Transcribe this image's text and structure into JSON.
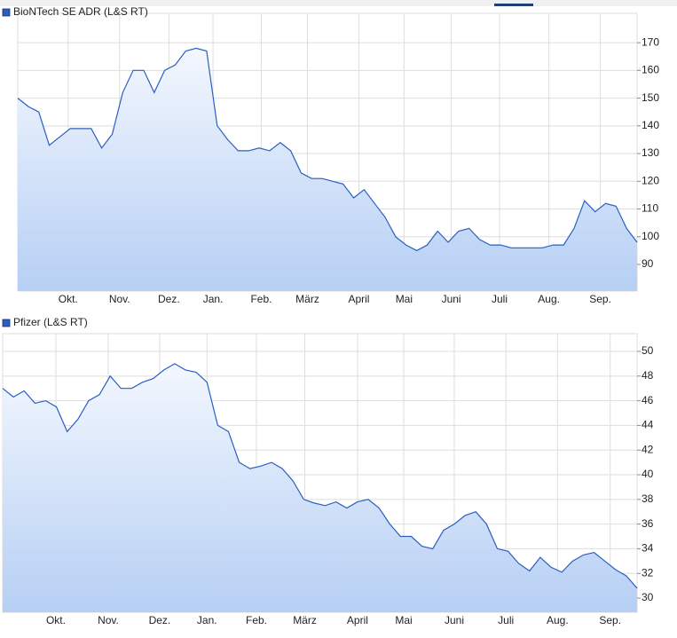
{
  "chart_data": [
    {
      "type": "line",
      "series": [
        {
          "name": "BioNTech SE ADR (L&S RT)",
          "color": "#2a5fbf",
          "values": [
            150,
            147,
            145,
            133,
            136,
            139,
            139,
            139,
            132,
            137,
            152,
            160,
            160,
            152,
            160,
            162,
            167,
            168,
            167,
            140,
            135,
            131,
            131,
            132,
            131,
            134,
            131,
            123,
            121,
            121,
            120,
            119,
            114,
            117,
            112,
            107,
            100,
            97,
            95,
            97,
            102,
            98,
            102,
            103,
            99,
            97,
            97,
            96,
            96,
            96,
            96,
            97,
            97,
            103,
            113,
            109,
            112,
            111,
            103,
            98
          ]
        }
      ],
      "xlim": [
        0,
        59
      ],
      "xticks": [
        {
          "value": 4.8,
          "label": "Okt."
        },
        {
          "value": 9.7,
          "label": "Nov."
        },
        {
          "value": 14.4,
          "label": "Dez."
        },
        {
          "value": 18.6,
          "label": "Jan."
        },
        {
          "value": 23.2,
          "label": "Feb."
        },
        {
          "value": 27.6,
          "label": "März"
        },
        {
          "value": 32.5,
          "label": "April"
        },
        {
          "value": 36.8,
          "label": "Mai"
        },
        {
          "value": 41.3,
          "label": "Juni"
        },
        {
          "value": 45.9,
          "label": "Juli"
        },
        {
          "value": 50.6,
          "label": "Aug."
        },
        {
          "value": 55.5,
          "label": "Sep."
        }
      ],
      "ylim": [
        80.4,
        180.6
      ],
      "yticks": [
        90,
        100,
        110,
        120,
        130,
        140,
        150,
        160,
        170
      ],
      "grid": true
    },
    {
      "type": "line",
      "series": [
        {
          "name": "Pfizer (L&S RT)",
          "color": "#2a5fbf",
          "values": [
            47,
            46.3,
            46.8,
            45.8,
            46,
            45.5,
            43.5,
            44.5,
            46,
            46.5,
            48,
            47,
            47,
            47.5,
            47.8,
            48.5,
            49,
            48.5,
            48.3,
            47.5,
            44,
            43.5,
            41,
            40.5,
            40.7,
            41,
            40.5,
            39.5,
            38,
            37.7,
            37.5,
            37.8,
            37.3,
            37.8,
            38,
            37.3,
            36,
            35,
            35,
            34.2,
            34,
            35.5,
            36,
            36.7,
            37,
            36,
            34,
            33.8,
            32.8,
            32.2,
            33.3,
            32.5,
            32.1,
            33,
            33.5,
            33.7,
            33,
            32.3,
            31.8,
            30.8
          ]
        }
      ],
      "xlim": [
        0,
        59
      ],
      "xticks": [
        {
          "value": 4.95,
          "label": "Okt."
        },
        {
          "value": 9.82,
          "label": "Nov."
        },
        {
          "value": 14.6,
          "label": "Dez."
        },
        {
          "value": 19.0,
          "label": "Jan."
        },
        {
          "value": 23.6,
          "label": "Feb."
        },
        {
          "value": 28.1,
          "label": "März"
        },
        {
          "value": 33.0,
          "label": "April"
        },
        {
          "value": 37.3,
          "label": "Mai"
        },
        {
          "value": 42.0,
          "label": "Juni"
        },
        {
          "value": 46.8,
          "label": "Juli"
        },
        {
          "value": 51.6,
          "label": "Aug."
        },
        {
          "value": 56.5,
          "label": "Sep."
        }
      ],
      "ylim": [
        28.85,
        51.44
      ],
      "yticks": [
        30,
        32,
        34,
        36,
        38,
        40,
        42,
        44,
        46,
        48,
        50
      ],
      "grid": true
    }
  ]
}
